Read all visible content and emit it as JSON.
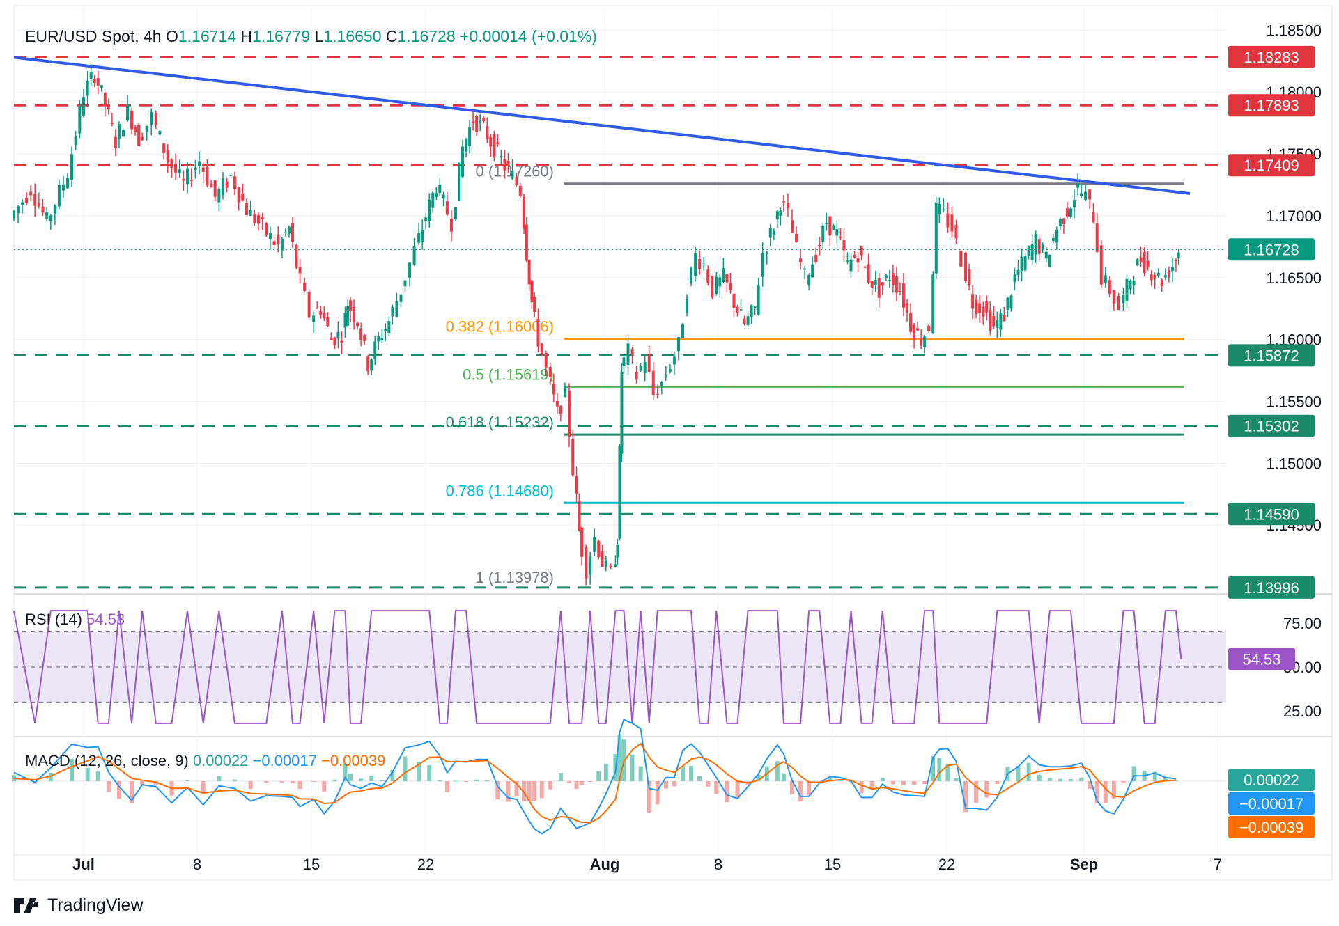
{
  "header": {
    "symbol": "EUR/USD Spot, 4h",
    "o_label": "O",
    "o_value": "1.16714",
    "h_label": "H",
    "h_value": "1.16779",
    "l_label": "L",
    "l_value": "1.16650",
    "c_label": "C",
    "c_value": "1.16728",
    "change": "+0.00014 (+0.01%)"
  },
  "brand": {
    "name": "TradingView",
    "icon": "tradingview-logo-icon"
  },
  "colors": {
    "up": "#089981",
    "down": "#f23645",
    "trend": "#2f5ce6",
    "red_level": "#e0343f",
    "green_level": "#1b8a6b",
    "grey_level": "#787b86",
    "fib_382": "#ff9800",
    "fib_5": "#4caf50",
    "fib_618": "#1b8a6b",
    "fib_786": "#00bcd4",
    "rsi": "#9c55c8",
    "rsi_band": "#ede6f7",
    "macd": "#2196f3",
    "signal": "#ff6d00"
  },
  "chart_data": {
    "type": "candlestick",
    "price_axis": {
      "ticks": [
        "1.18500",
        "1.18000",
        "1.17500",
        "1.17000",
        "1.16500",
        "1.16000",
        "1.15500",
        "1.15000",
        "1.14500"
      ],
      "ylim": [
        1.1395,
        1.1862
      ]
    },
    "x_axis": {
      "ticks": [
        "Jul",
        "8",
        "15",
        "22",
        "Aug",
        "8",
        "15",
        "22",
        "Sep",
        "7"
      ]
    },
    "current_price": "1.16728",
    "horizontal_levels": [
      {
        "value": 1.18283,
        "label": "1.18283",
        "style": "dashed-red"
      },
      {
        "value": 1.17893,
        "label": "1.17893",
        "style": "dashed-red"
      },
      {
        "value": 1.17409,
        "label": "1.17409",
        "style": "dashed-red"
      },
      {
        "value": 1.15872,
        "label": "1.15872",
        "style": "dashed-green"
      },
      {
        "value": 1.15302,
        "label": "1.15302",
        "style": "dashed-green"
      },
      {
        "value": 1.1459,
        "label": "1.14590",
        "style": "dashed-green"
      },
      {
        "value": 1.13996,
        "label": "1.13996",
        "style": "dashed-green"
      }
    ],
    "fibonacci": [
      {
        "label": "0 (1.17260)",
        "value": 1.1726
      },
      {
        "label": "0.382 (1.16006)",
        "value": 1.16006
      },
      {
        "label": "0.5 (1.15619)",
        "value": 1.15619
      },
      {
        "label": "0.618 (1.15232)",
        "value": 1.15232
      },
      {
        "label": "0.786 (1.14680)",
        "value": 1.1468
      },
      {
        "label": "1 (1.13978)",
        "value": 1.13978
      }
    ],
    "trendline": {
      "from": 1.1828,
      "to": 1.1718,
      "description": "descending resistance"
    },
    "price_path": [
      [
        0.0,
        1.1698
      ],
      [
        0.02,
        1.1722
      ],
      [
        0.035,
        1.1695
      ],
      [
        0.055,
        1.1735
      ],
      [
        0.07,
        1.18
      ],
      [
        0.08,
        1.1815
      ],
      [
        0.09,
        1.179
      ],
      [
        0.1,
        1.176
      ],
      [
        0.112,
        1.1785
      ],
      [
        0.122,
        1.1762
      ],
      [
        0.135,
        1.178
      ],
      [
        0.15,
        1.1745
      ],
      [
        0.165,
        1.1725
      ],
      [
        0.18,
        1.1745
      ],
      [
        0.195,
        1.1715
      ],
      [
        0.21,
        1.1732
      ],
      [
        0.225,
        1.1705
      ],
      [
        0.24,
        1.169
      ],
      [
        0.255,
        1.1675
      ],
      [
        0.265,
        1.169
      ],
      [
        0.272,
        1.166
      ],
      [
        0.285,
        1.162
      ],
      [
        0.295,
        1.1625
      ],
      [
        0.305,
        1.16
      ],
      [
        0.315,
        1.1605
      ],
      [
        0.32,
        1.163
      ],
      [
        0.33,
        1.1615
      ],
      [
        0.34,
        1.158
      ],
      [
        0.35,
        1.16
      ],
      [
        0.36,
        1.1615
      ],
      [
        0.372,
        1.164
      ],
      [
        0.385,
        1.1672
      ],
      [
        0.395,
        1.17
      ],
      [
        0.405,
        1.1725
      ],
      [
        0.412,
        1.171
      ],
      [
        0.42,
        1.1695
      ],
      [
        0.43,
        1.1755
      ],
      [
        0.44,
        1.1778
      ],
      [
        0.45,
        1.177
      ],
      [
        0.46,
        1.1755
      ],
      [
        0.47,
        1.174
      ],
      [
        0.478,
        1.1732
      ],
      [
        0.485,
        1.172
      ],
      [
        0.49,
        1.167
      ],
      [
        0.495,
        1.163
      ],
      [
        0.502,
        1.16
      ],
      [
        0.51,
        1.1575
      ],
      [
        0.52,
        1.154
      ],
      [
        0.528,
        1.1555
      ],
      [
        0.535,
        1.1495
      ],
      [
        0.54,
        1.1445
      ],
      [
        0.548,
        1.1415
      ],
      [
        0.556,
        1.144
      ],
      [
        0.563,
        1.142
      ],
      [
        0.572,
        1.141
      ],
      [
        0.576,
        1.144
      ],
      [
        0.58,
        1.1575
      ],
      [
        0.588,
        1.159
      ],
      [
        0.596,
        1.157
      ],
      [
        0.604,
        1.1585
      ],
      [
        0.612,
        1.1555
      ],
      [
        0.62,
        1.1565
      ],
      [
        0.628,
        1.158
      ],
      [
        0.636,
        1.1595
      ],
      [
        0.644,
        1.164
      ],
      [
        0.652,
        1.1668
      ],
      [
        0.66,
        1.166
      ],
      [
        0.668,
        1.164
      ],
      [
        0.678,
        1.165
      ],
      [
        0.688,
        1.163
      ],
      [
        0.698,
        1.1612
      ],
      [
        0.708,
        1.1625
      ],
      [
        0.716,
        1.167
      ],
      [
        0.726,
        1.1692
      ],
      [
        0.732,
        1.1712
      ],
      [
        0.74,
        1.17
      ],
      [
        0.748,
        1.1672
      ],
      [
        0.756,
        1.165
      ],
      [
        0.766,
        1.167
      ],
      [
        0.776,
        1.1695
      ],
      [
        0.786,
        1.1685
      ],
      [
        0.796,
        1.166
      ],
      [
        0.806,
        1.167
      ],
      [
        0.816,
        1.165
      ],
      [
        0.826,
        1.164
      ],
      [
        0.836,
        1.1652
      ],
      [
        0.846,
        1.164
      ],
      [
        0.856,
        1.1612
      ],
      [
        0.866,
        1.16
      ],
      [
        0.874,
        1.161
      ],
      [
        0.88,
        1.1705
      ],
      [
        0.888,
        1.17
      ],
      [
        0.896,
        1.169
      ],
      [
        0.905,
        1.1665
      ],
      [
        0.915,
        1.163
      ],
      [
        0.925,
        1.1625
      ],
      [
        0.935,
        1.161
      ],
      [
        0.945,
        1.162
      ],
      [
        0.955,
        1.165
      ],
      [
        0.965,
        1.1665
      ],
      [
        0.975,
        1.168
      ],
      [
        0.985,
        1.1665
      ],
      [
        0.995,
        1.169
      ],
      [
        1.005,
        1.1705
      ],
      [
        1.015,
        1.1722
      ],
      [
        1.023,
        1.1715
      ],
      [
        1.03,
        1.17
      ],
      [
        1.038,
        1.165
      ],
      [
        1.046,
        1.164
      ],
      [
        1.055,
        1.1625
      ],
      [
        1.065,
        1.165
      ],
      [
        1.075,
        1.1665
      ],
      [
        1.085,
        1.1655
      ],
      [
        1.095,
        1.1648
      ],
      [
        1.105,
        1.166
      ],
      [
        1.11,
        1.1672
      ]
    ],
    "rsi": {
      "label": "RSI (14)",
      "value_label": "54.53",
      "last_value": "54.53",
      "ticks": [
        "75.00",
        "50.00",
        "25.00"
      ],
      "ylim": [
        12,
        88
      ],
      "band": [
        30,
        70
      ]
    },
    "macd": {
      "label": "MACD (12, 26, close, 9)",
      "histogram": "0.00022",
      "macd_line": "−0.00017",
      "signal": "−0.00039",
      "last_histogram": "0.00022",
      "last_macd": "−0.00017",
      "last_signal": "−0.00039"
    }
  }
}
